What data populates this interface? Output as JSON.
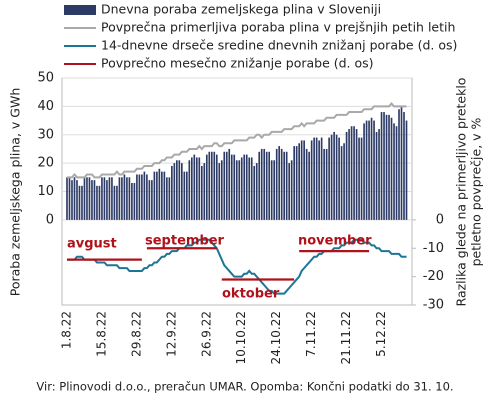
{
  "chart_data": {
    "type": "bar",
    "categories": [
      "1.8.22",
      null,
      null,
      null,
      null,
      null,
      null,
      null,
      null,
      null,
      null,
      null,
      null,
      null,
      "15.8.22",
      null,
      null,
      null,
      null,
      null,
      null,
      null,
      null,
      null,
      null,
      null,
      null,
      null,
      "29.8.22",
      null,
      null,
      null,
      null,
      null,
      null,
      null,
      null,
      null,
      null,
      null,
      null,
      null,
      "12.9.22",
      null,
      null,
      null,
      null,
      null,
      null,
      null,
      null,
      null,
      null,
      null,
      null,
      null,
      "26.9.22",
      null,
      null,
      null,
      null,
      null,
      null,
      null,
      null,
      null,
      null,
      null,
      null,
      null,
      "10.10.22",
      null,
      null,
      null,
      null,
      null,
      null,
      null,
      null,
      null,
      null,
      null,
      null,
      null,
      "24.10.22",
      null,
      null,
      null,
      null,
      null,
      null,
      null,
      null,
      null,
      null,
      null,
      null,
      null,
      "7.11.22",
      null,
      null,
      null,
      null,
      null,
      null,
      null,
      null,
      null,
      null,
      null,
      null,
      null,
      "21.11.22",
      null,
      null,
      null,
      null,
      null,
      null,
      null,
      null,
      null,
      null,
      null,
      null,
      null,
      "5.12.22",
      null,
      null,
      null,
      null,
      null,
      null,
      null,
      null,
      null,
      null
    ],
    "series": [
      {
        "name": "Dnevna poraba zemeljskega plina v Sloveniji",
        "type": "bar",
        "color": "#2c3a66",
        "values": [
          15,
          15,
          14,
          15,
          14,
          12,
          12,
          15,
          15,
          15,
          14,
          14,
          12,
          12,
          15,
          15,
          14,
          15,
          15,
          12,
          12,
          15,
          15,
          16,
          15,
          15,
          13,
          13,
          16,
          16,
          16,
          17,
          16,
          14,
          14,
          17,
          17,
          18,
          17,
          17,
          15,
          15,
          19,
          20,
          21,
          21,
          20,
          17,
          17,
          21,
          22,
          23,
          22,
          22,
          19,
          20,
          23,
          24,
          24,
          24,
          23,
          20,
          21,
          24,
          24,
          25,
          23,
          23,
          21,
          21,
          22,
          23,
          23,
          22,
          22,
          19,
          20,
          24,
          25,
          25,
          24,
          24,
          21,
          21,
          25,
          26,
          25,
          24,
          24,
          20,
          21,
          26,
          26,
          27,
          28,
          28,
          25,
          24,
          28,
          29,
          29,
          28,
          29,
          25,
          25,
          29,
          30,
          31,
          30,
          29,
          26,
          27,
          31,
          32,
          33,
          33,
          32,
          29,
          29,
          34,
          35,
          35,
          36,
          35,
          31,
          32,
          38,
          38,
          37,
          37,
          36,
          34,
          33,
          39,
          40,
          38,
          35
        ]
      },
      {
        "name": "Povprečna primerljiva poraba plina v prejšnjih petih letih",
        "type": "line",
        "color": "#a9a9a9",
        "values": [
          15,
          15,
          15,
          16,
          15,
          15,
          15,
          15,
          16,
          16,
          16,
          15,
          15,
          15,
          16,
          16,
          16,
          16,
          16,
          16,
          17,
          16,
          16,
          17,
          17,
          17,
          17,
          17,
          18,
          18,
          18,
          19,
          19,
          19,
          19,
          20,
          20,
          20,
          21,
          21,
          22,
          22,
          22,
          23,
          23,
          23,
          24,
          24,
          24,
          25,
          25,
          25,
          25,
          26,
          25,
          26,
          26,
          26,
          26,
          27,
          27,
          26,
          26,
          27,
          27,
          27,
          27,
          28,
          28,
          28,
          28,
          28,
          28,
          29,
          29,
          29,
          30,
          30,
          29,
          30,
          30,
          30,
          31,
          31,
          31,
          31,
          31,
          32,
          32,
          32,
          32,
          33,
          33,
          33,
          34,
          33,
          34,
          34,
          34,
          34,
          35,
          35,
          35,
          35,
          36,
          36,
          36,
          36,
          37,
          37,
          37,
          37,
          37,
          38,
          38,
          38,
          38,
          38,
          38,
          39,
          39,
          39,
          39,
          40,
          40,
          40,
          40,
          40,
          40,
          40,
          41,
          40,
          40,
          40,
          40,
          40,
          40
        ]
      },
      {
        "name": "14-dnevne drseče sredine dnevnih znižanj porabe (d. os)",
        "type": "line",
        "axis": "y2",
        "color": "#1b7696",
        "values": [
          -14,
          -14,
          -14,
          -14,
          -13,
          -13,
          -13,
          -14,
          -14,
          -14,
          -14,
          -14,
          -15,
          -15,
          -15,
          -15,
          -16,
          -16,
          -16,
          -16,
          -16,
          -17,
          -17,
          -17,
          -17,
          -18,
          -18,
          -18,
          -18,
          -18,
          -18,
          -17,
          -17,
          -16,
          -16,
          -15,
          -15,
          -14,
          -13,
          -13,
          -12,
          -12,
          -11,
          -11,
          -11,
          -10,
          -10,
          -10,
          -9,
          -9,
          -9,
          -8,
          -8,
          -7,
          -7,
          -7,
          -7,
          -7,
          -8,
          -9,
          -10,
          -12,
          -14,
          -16,
          -17,
          -18,
          -19,
          -20,
          -20,
          -20,
          -20,
          -19,
          -19,
          -18,
          -19,
          -19,
          -20,
          -21,
          -22,
          -23,
          -24,
          -25,
          -25,
          -26,
          -26,
          -26,
          -26,
          -26,
          -25,
          -24,
          -23,
          -22,
          -21,
          -20,
          -18,
          -17,
          -16,
          -15,
          -14,
          -13,
          -13,
          -12,
          -12,
          -11,
          -11,
          -11,
          -11,
          -10,
          -10,
          -10,
          -9,
          -9,
          -8,
          -8,
          -8,
          -7,
          -7,
          -7,
          -7,
          -8,
          -8,
          -8,
          -9,
          -9,
          -10,
          -10,
          -11,
          -11,
          -11,
          -11,
          -12,
          -12,
          -12,
          -12,
          -13,
          -13,
          -13
        ]
      },
      {
        "name": "Povprečno mesečno znižanje porabe (d. os)",
        "type": "line",
        "axis": "y2",
        "color": "#b0121b",
        "values": [
          -14,
          -14,
          -14,
          -14,
          -14,
          -14,
          -14,
          -14,
          -14,
          -14,
          -14,
          -14,
          -14,
          -14,
          -14,
          -14,
          -14,
          -14,
          -14,
          -14,
          -14,
          -14,
          -14,
          -14,
          -14,
          -14,
          -14,
          -14,
          -14,
          -14,
          -14,
          null,
          -10,
          -10,
          -10,
          -10,
          -10,
          -10,
          -10,
          -10,
          -10,
          -10,
          -10,
          -10,
          -10,
          -10,
          -10,
          -10,
          -10,
          -10,
          -10,
          -10,
          -10,
          -10,
          -10,
          -10,
          -10,
          -10,
          -10,
          -10,
          -10,
          null,
          -21,
          -21,
          -21,
          -21,
          -21,
          -21,
          -21,
          -21,
          -21,
          -21,
          -21,
          -21,
          -21,
          -21,
          -21,
          -21,
          -21,
          -21,
          -21,
          -21,
          -21,
          -21,
          -21,
          -21,
          -21,
          -21,
          -21,
          -21,
          -21,
          -21,
          null,
          -11,
          -11,
          -11,
          -11,
          -11,
          -11,
          -11,
          -11,
          -11,
          -11,
          -11,
          -11,
          -11,
          -11,
          -11,
          -11,
          -11,
          -11,
          -11,
          -11,
          -11,
          -11,
          -11,
          -11,
          -11,
          -11,
          -11,
          -11,
          -11,
          null,
          null,
          null,
          null,
          null,
          null,
          null,
          null,
          null,
          null,
          null,
          null,
          null,
          null,
          null
        ]
      }
    ],
    "annotations": [
      "avgust",
      "september",
      "oktober",
      "november"
    ],
    "ylabel": "Poraba zemeljskega plina, v GWh",
    "y2label": [
      "Razlika glede na primerljivo preteklo",
      "petletno povprečje, v %"
    ],
    "ylim": [
      -30,
      50
    ],
    "yticks": [
      0,
      10,
      20,
      30,
      40,
      50
    ],
    "y2lim": [
      -30,
      50
    ],
    "y2ticks": [
      -30,
      -20,
      -10,
      0
    ],
    "grid": true,
    "source": "Vir: Plinovodi d.o.o., preračun UMAR. Opomba: Končni podatki do 31. 10."
  }
}
